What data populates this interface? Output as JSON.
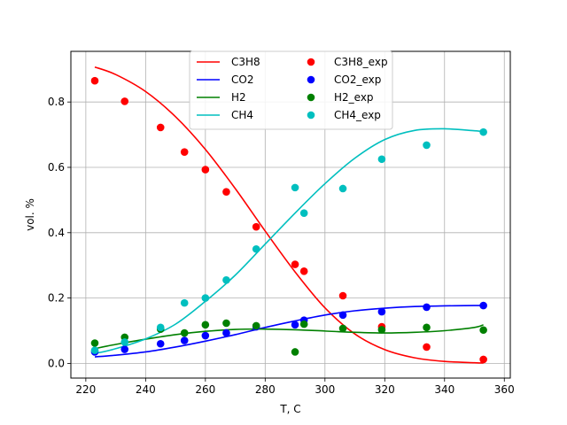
{
  "chart_data": {
    "type": "line",
    "title": "",
    "xlabel": "T, C",
    "ylabel": "vol. %",
    "xlim": [
      215,
      362
    ],
    "ylim": [
      -0.045,
      0.955
    ],
    "xticks": [
      "220",
      "240",
      "260",
      "280",
      "300",
      "320",
      "340",
      "360"
    ],
    "yticks": [
      "0.0",
      "0.2",
      "0.4",
      "0.6",
      "0.8"
    ],
    "grid": true,
    "legend": {
      "position": "top-center",
      "columns": 2
    },
    "model_x": [
      223,
      230,
      240,
      250,
      260,
      270,
      280,
      290,
      300,
      310,
      320,
      330,
      340,
      350,
      353
    ],
    "series": [
      {
        "name": "C3H8",
        "kind": "line",
        "color": "#ff0000",
        "values": [
          0.907,
          0.884,
          0.832,
          0.755,
          0.655,
          0.535,
          0.405,
          0.28,
          0.17,
          0.09,
          0.042,
          0.017,
          0.006,
          0.002,
          0.001
        ]
      },
      {
        "name": "CO2",
        "kind": "line",
        "color": "#0000ff",
        "values": [
          0.02,
          0.025,
          0.035,
          0.05,
          0.068,
          0.088,
          0.11,
          0.13,
          0.148,
          0.161,
          0.169,
          0.174,
          0.176,
          0.177,
          0.177
        ]
      },
      {
        "name": "H2",
        "kind": "line",
        "color": "#008000",
        "values": [
          0.045,
          0.058,
          0.074,
          0.088,
          0.098,
          0.104,
          0.105,
          0.103,
          0.099,
          0.095,
          0.093,
          0.095,
          0.1,
          0.11,
          0.118
        ]
      },
      {
        "name": "CH4",
        "kind": "line",
        "color": "#00bfbf",
        "values": [
          0.03,
          0.045,
          0.075,
          0.12,
          0.19,
          0.27,
          0.365,
          0.46,
          0.55,
          0.628,
          0.685,
          0.713,
          0.718,
          0.712,
          0.71
        ]
      },
      {
        "name": "C3H8_exp",
        "kind": "scatter",
        "color": "#ff0000",
        "x": [
          223,
          233,
          245,
          253,
          260,
          267,
          277,
          290,
          293,
          306,
          319,
          334,
          353
        ],
        "values": [
          0.865,
          0.802,
          0.722,
          0.647,
          0.593,
          0.525,
          0.418,
          0.303,
          0.282,
          0.207,
          0.112,
          0.05,
          0.012
        ]
      },
      {
        "name": "CO2_exp",
        "kind": "scatter",
        "color": "#0000ff",
        "x": [
          223,
          233,
          245,
          253,
          260,
          267,
          277,
          290,
          293,
          306,
          319,
          334,
          353
        ],
        "values": [
          0.035,
          0.043,
          0.06,
          0.07,
          0.085,
          0.093,
          0.112,
          0.118,
          0.132,
          0.148,
          0.158,
          0.172,
          0.177
        ]
      },
      {
        "name": "H2_exp",
        "kind": "scatter",
        "color": "#008000",
        "x": [
          223,
          233,
          245,
          253,
          260,
          267,
          277,
          290,
          293,
          306,
          319,
          334,
          353
        ],
        "values": [
          0.062,
          0.08,
          0.105,
          0.093,
          0.118,
          0.123,
          0.115,
          0.035,
          0.12,
          0.107,
          0.103,
          0.11,
          0.102
        ]
      },
      {
        "name": "CH4_exp",
        "kind": "scatter",
        "color": "#00bfbf",
        "x": [
          223,
          233,
          245,
          253,
          260,
          267,
          277,
          290,
          293,
          306,
          319,
          334,
          353
        ],
        "values": [
          0.04,
          0.065,
          0.11,
          0.185,
          0.2,
          0.255,
          0.35,
          0.538,
          0.46,
          0.535,
          0.625,
          0.668,
          0.708
        ]
      }
    ]
  }
}
